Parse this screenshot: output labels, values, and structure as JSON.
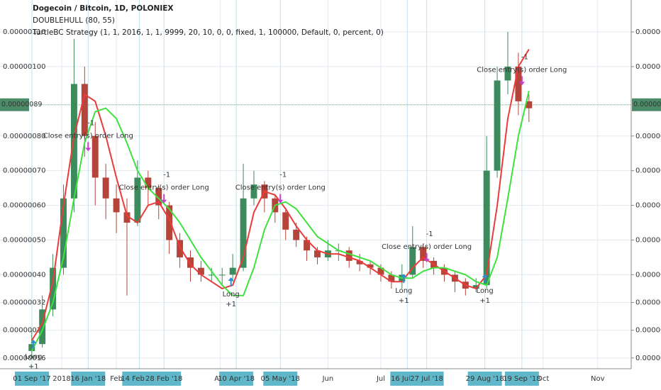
{
  "chart_data": {
    "type": "candlestick",
    "title": "Dogecoin / Bitcoin, 1D, POLONIEX",
    "indicators": [
      "DOUBLEHULL (80, 55)",
      "TurtleBC Strategy (1, 1, 2016, 1, 1, 9999, 20, 10, 0, 0, fixed, 1, 100000, Default, 0, percent, 0)"
    ],
    "x": [
      "2017-12-15",
      "2017-12-21",
      "2017-12-27",
      "2018-01-02",
      "2018-01-08",
      "2018-01-14",
      "2018-01-20",
      "2018-01-26",
      "2018-02-01",
      "2018-02-07",
      "2018-02-13",
      "2018-02-19",
      "2018-02-25",
      "2018-03-03",
      "2018-03-09",
      "2018-03-15",
      "2018-03-21",
      "2018-03-27",
      "2018-04-02",
      "2018-04-08",
      "2018-04-14",
      "2018-04-20",
      "2018-04-26",
      "2018-05-02",
      "2018-05-08",
      "2018-05-14",
      "2018-05-20",
      "2018-05-26",
      "2018-06-01",
      "2018-06-07",
      "2018-06-13",
      "2018-06-19",
      "2018-06-25",
      "2018-07-01",
      "2018-07-07",
      "2018-07-13",
      "2018-07-19",
      "2018-07-25",
      "2018-07-31",
      "2018-08-06",
      "2018-08-12",
      "2018-08-18",
      "2018-08-24",
      "2018-08-30",
      "2018-09-05",
      "2018-09-11",
      "2018-09-17",
      "2018-09-23"
    ],
    "open": [
      1.8e-07,
      2e-07,
      3e-07,
      4.2e-07,
      6.2e-07,
      9.5e-07,
      8e-07,
      6.8e-07,
      6.2e-07,
      5.8e-07,
      5.5e-07,
      6.8e-07,
      6.5e-07,
      6e-07,
      5e-07,
      4.5e-07,
      4.2e-07,
      4e-07,
      4e-07,
      4e-07,
      4.2e-07,
      6.2e-07,
      6.6e-07,
      6.2e-07,
      5.8e-07,
      5.3e-07,
      5e-07,
      4.7e-07,
      4.5e-07,
      4.7e-07,
      4.7e-07,
      4.4e-07,
      4.3e-07,
      4.2e-07,
      4e-07,
      3.8e-07,
      4e-07,
      4.8e-07,
      4.4e-07,
      4.2e-07,
      4e-07,
      3.8e-07,
      3.6e-07,
      3.7e-07,
      7e-07,
      9.6e-07,
      1e-06,
      9e-07
    ],
    "high": [
      2.4e-07,
      3.4e-07,
      4.6e-07,
      6.6e-07,
      1.08e-06,
      1e-06,
      8.4e-07,
      7.2e-07,
      6.6e-07,
      6.2e-07,
      7.3e-07,
      7e-07,
      6.6e-07,
      6.1e-07,
      5.2e-07,
      4.7e-07,
      4.4e-07,
      4.2e-07,
      4.2e-07,
      4.6e-07,
      7.2e-07,
      7e-07,
      6.7e-07,
      6.3e-07,
      5.9e-07,
      5.5e-07,
      5.1e-07,
      4.8e-07,
      5e-07,
      4.9e-07,
      4.8e-07,
      4.6e-07,
      4.4e-07,
      4.3e-07,
      4.1e-07,
      4.3e-07,
      5.4e-07,
      4.9e-07,
      4.5e-07,
      4.3e-07,
      4.1e-07,
      3.9e-07,
      3.9e-07,
      8e-07,
      1e-06,
      1.1e-06,
      1.04e-06,
      9.2e-07
    ],
    "low": [
      1.6e-07,
      1.9e-07,
      2.8e-07,
      4e-07,
      5.8e-07,
      7.4e-07,
      6e-07,
      5.6e-07,
      5.2e-07,
      3.4e-07,
      5.4e-07,
      6e-07,
      5.6e-07,
      4.6e-07,
      4.2e-07,
      3.8e-07,
      3.8e-07,
      3.8e-07,
      3.7e-07,
      3.8e-07,
      4.1e-07,
      6e-07,
      5.8e-07,
      5.5e-07,
      5e-07,
      4.8e-07,
      4.4e-07,
      4.3e-07,
      4.4e-07,
      4.4e-07,
      4.2e-07,
      4.1e-07,
      4e-07,
      3.8e-07,
      3.6e-07,
      3.6e-07,
      3.9e-07,
      4.2e-07,
      4e-07,
      3.8e-07,
      3.5e-07,
      3.4e-07,
      3.5e-07,
      3.6e-07,
      6.8e-07,
      9.2e-07,
      8.6e-07,
      8.4e-07
    ],
    "close": [
      2e-07,
      3e-07,
      4.2e-07,
      6.2e-07,
      9.5e-07,
      8e-07,
      6.8e-07,
      6.2e-07,
      5.8e-07,
      5.5e-07,
      6.8e-07,
      6.5e-07,
      6e-07,
      5e-07,
      4.5e-07,
      4.2e-07,
      4e-07,
      4e-07,
      4e-07,
      4.2e-07,
      6.2e-07,
      6.6e-07,
      6.2e-07,
      5.8e-07,
      5.3e-07,
      5e-07,
      4.7e-07,
      4.5e-07,
      4.7e-07,
      4.7e-07,
      4.4e-07,
      4.3e-07,
      4.2e-07,
      4e-07,
      3.8e-07,
      4e-07,
      4.8e-07,
      4.4e-07,
      4.2e-07,
      4e-07,
      3.8e-07,
      3.6e-07,
      3.7e-07,
      7e-07,
      9.6e-07,
      1e-06,
      9e-07,
      8.8e-07
    ],
    "up_color": "#3d8a5c",
    "down_color": "#b5443a",
    "series": [
      {
        "color": "#ec3b3b",
        "values": [
          2.1e-07,
          2.6e-07,
          3.8e-07,
          6e-07,
          8e-07,
          9.2e-07,
          9e-07,
          8e-07,
          6.8e-07,
          5.7e-07,
          5.5e-07,
          6e-07,
          6.1e-07,
          5.6e-07,
          4.8e-07,
          4.3e-07,
          4e-07,
          3.8e-07,
          3.6e-07,
          3.7e-07,
          4.5e-07,
          5.8e-07,
          6.4e-07,
          6.3e-07,
          5.9e-07,
          5.4e-07,
          5e-07,
          4.7e-07,
          4.6e-07,
          4.6e-07,
          4.5e-07,
          4.4e-07,
          4.2e-07,
          4e-07,
          3.8e-07,
          3.8e-07,
          4.2e-07,
          4.5e-07,
          4.3e-07,
          4.1e-07,
          3.9e-07,
          3.7e-07,
          3.6e-07,
          4e-07,
          6e-07,
          8.5e-07,
          1e-06,
          1.05e-06
        ]
      },
      {
        "color": "#3ee23e",
        "values": [
          1.8e-07,
          2.4e-07,
          3.2e-07,
          4.5e-07,
          6.2e-07,
          7.8e-07,
          8.7e-07,
          8.8e-07,
          8.5e-07,
          7.8e-07,
          7e-07,
          6.5e-07,
          6.2e-07,
          5.9e-07,
          5.5e-07,
          5e-07,
          4.5e-07,
          4.1e-07,
          3.7e-07,
          3.4e-07,
          3.4e-07,
          4.2e-07,
          5.3e-07,
          6e-07,
          6.1e-07,
          5.9e-07,
          5.5e-07,
          5.1e-07,
          4.9e-07,
          4.7e-07,
          4.6e-07,
          4.5e-07,
          4.4e-07,
          4.2e-07,
          4e-07,
          3.9e-07,
          3.9e-07,
          4.1e-07,
          4.2e-07,
          4.2e-07,
          4.1e-07,
          4e-07,
          3.8e-07,
          3.7e-07,
          4.5e-07,
          6.2e-07,
          8e-07,
          9.3e-07
        ]
      }
    ],
    "entries": [
      {
        "date": "2017-12-16",
        "price": 1.8e-07,
        "label": "Long",
        "qty": "+1"
      },
      {
        "date": "2018-04-07",
        "price": 3.6e-07,
        "label": "Long",
        "qty": "+1"
      },
      {
        "date": "2018-07-14",
        "price": 3.7e-07,
        "label": "Long",
        "qty": "+1"
      },
      {
        "date": "2018-08-29",
        "price": 3.7e-07,
        "label": "Long",
        "qty": "+1"
      }
    ],
    "exits": [
      {
        "date": "2018-01-16",
        "price": 7.6e-07,
        "label": "Close entry(s) order Long",
        "qty": "-1"
      },
      {
        "date": "2018-02-28",
        "price": 6.1e-07,
        "label": "Close entry(s) order Long",
        "qty": "-1"
      },
      {
        "date": "2018-05-05",
        "price": 6.1e-07,
        "label": "Close entry(s) order Long",
        "qty": "-1"
      },
      {
        "date": "2018-07-27",
        "price": 4.4e-07,
        "label": "Close entry(s) order Long",
        "qty": "-1"
      },
      {
        "date": "2018-09-19",
        "price": 9.5e-07,
        "label": "Close entry(s) order Long",
        "qty": "-1"
      }
    ],
    "last_price": {
      "value": 8.9e-07,
      "label": "0.00000089"
    },
    "xlim": [
      "2017-11-27",
      "2018-11-20"
    ],
    "xticks": [
      {
        "value": "2018-01-01",
        "label": "2018"
      },
      {
        "value": "2018-02-01",
        "label": "Feb"
      },
      {
        "value": "2018-04-01",
        "label": "Apr"
      },
      {
        "value": "2018-06-01",
        "label": "Jun"
      },
      {
        "value": "2018-07-01",
        "label": "Jul"
      },
      {
        "value": "2018-10-01",
        "label": "Oct"
      },
      {
        "value": "2018-11-01",
        "label": "Nov"
      }
    ],
    "highlighted_dates": [
      {
        "value": "2017-09-01",
        "label": "01 Sep '17"
      },
      {
        "value": "2018-01-16",
        "label": "16 Jan '18"
      },
      {
        "value": "2018-02-14",
        "label": "14 Feb '18"
      },
      {
        "value": "2018-02-28",
        "label": "28 Feb '18"
      },
      {
        "value": "2018-04-10",
        "label": "10 Apr '18"
      },
      {
        "value": "2018-05-05",
        "label": "05 May '18"
      },
      {
        "value": "2018-07-16",
        "label": "16 Jul '18"
      },
      {
        "value": "2018-07-27",
        "label": "27 Jul '18"
      },
      {
        "value": "2018-08-29",
        "label": "29 Aug '18"
      },
      {
        "value": "2018-09-19",
        "label": "19 Sep '18"
      }
    ],
    "ylim": [
      1.29e-07,
      1.192e-06
    ],
    "yticks": [
      {
        "value": 1.1e-06,
        "label": "0.00000110"
      },
      {
        "value": 1e-06,
        "label": "0.00000100"
      },
      {
        "value": 8e-07,
        "label": "0.00000080"
      },
      {
        "value": 7e-07,
        "label": "0.00000070"
      },
      {
        "value": 6e-07,
        "label": "0.00000060"
      },
      {
        "value": 5e-07,
        "label": "0.00000050"
      },
      {
        "value": 4e-07,
        "label": "0.00000040"
      },
      {
        "value": 3.2e-07,
        "label": "0.00000032"
      },
      {
        "value": 2.4e-07,
        "label": "0.00000024"
      },
      {
        "value": 1.6e-07,
        "label": "0.00000016"
      }
    ],
    "log_scale": false,
    "grid": true
  }
}
